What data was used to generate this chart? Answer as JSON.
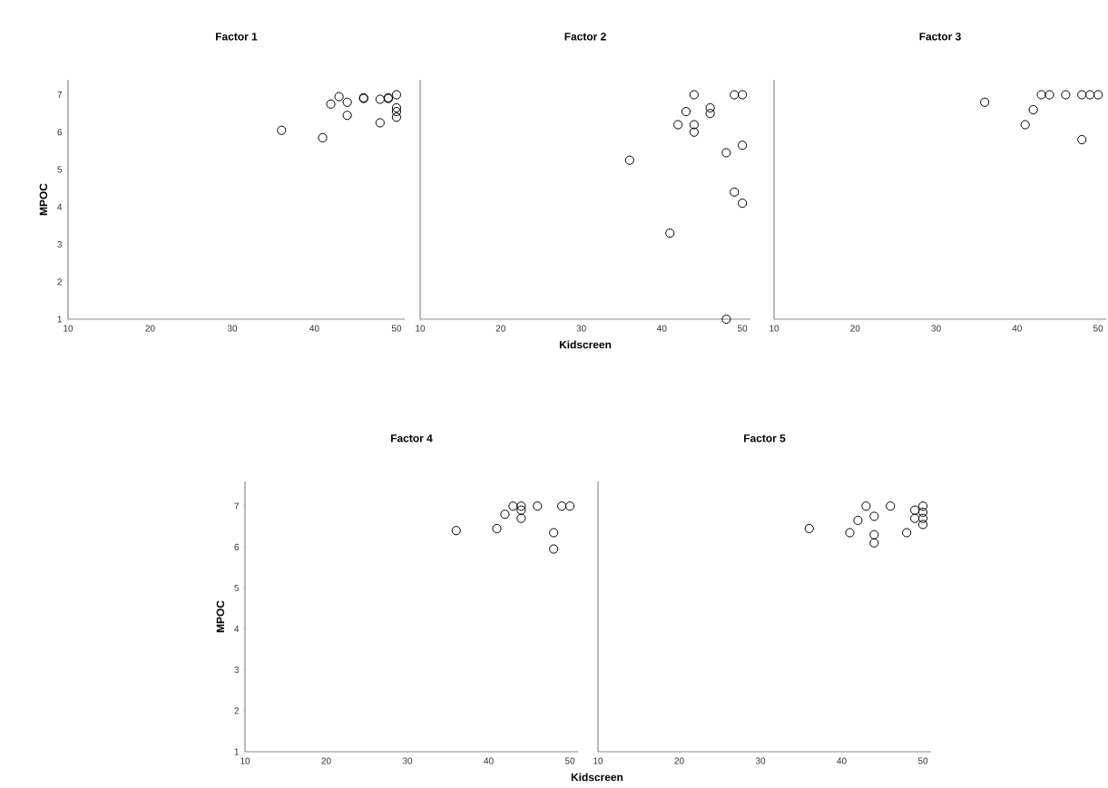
{
  "chart_data": [
    {
      "type": "scatter",
      "title": "Factor 1",
      "ylabel": "MPOC",
      "marker": "circle",
      "color": "#000000",
      "xlim": [
        10,
        51
      ],
      "ylim": [
        1,
        7.4
      ],
      "xticks": [
        10,
        20,
        30,
        40,
        50
      ],
      "yticks": [
        1,
        2,
        3,
        4,
        5,
        6,
        7
      ],
      "x": [
        36,
        41,
        42,
        43,
        44,
        44,
        46,
        46,
        48,
        48,
        49,
        49,
        50,
        50,
        50,
        50
      ],
      "values": [
        6.05,
        5.85,
        6.75,
        6.95,
        6.8,
        6.45,
        6.9,
        6.92,
        6.88,
        6.25,
        6.9,
        6.92,
        7.0,
        6.65,
        6.55,
        6.4
      ]
    },
    {
      "type": "scatter",
      "title": "Factor 2",
      "xlabel": "Kidscreen",
      "marker": "circle",
      "color": "#000000",
      "tick_labels": "x",
      "xlim": [
        10,
        51
      ],
      "ylim": [
        1,
        7.4
      ],
      "xticks": [
        10,
        20,
        30,
        40,
        50
      ],
      "yticks": [
        1,
        2,
        3,
        4,
        5,
        6,
        7
      ],
      "x": [
        36,
        41,
        42,
        43,
        44,
        44,
        44,
        46,
        46,
        48,
        49,
        50,
        50,
        49,
        50,
        48
      ],
      "values": [
        5.25,
        3.3,
        6.2,
        6.55,
        7.0,
        6.2,
        6.0,
        6.65,
        6.5,
        5.45,
        7.0,
        7.0,
        5.65,
        4.4,
        4.1,
        1.0
      ]
    },
    {
      "type": "scatter",
      "title": "Factor 3",
      "marker": "circle",
      "color": "#000000",
      "tick_labels": "x",
      "xlim": [
        10,
        51
      ],
      "ylim": [
        1,
        7.4
      ],
      "xticks": [
        10,
        20,
        30,
        40,
        50
      ],
      "yticks": [
        1,
        2,
        3,
        4,
        5,
        6,
        7
      ],
      "x": [
        36,
        41,
        42,
        43,
        44,
        46,
        48,
        49,
        50,
        48
      ],
      "values": [
        6.8,
        6.2,
        6.6,
        7.0,
        7.0,
        7.0,
        7.0,
        7.0,
        7.0,
        5.8
      ]
    },
    {
      "type": "scatter",
      "title": "Factor 4",
      "xlabel": "Kidscreen",
      "ylabel": "MPOC",
      "marker": "circle",
      "color": "#000000",
      "xlim": [
        10,
        51
      ],
      "ylim": [
        1,
        7.6
      ],
      "xticks": [
        10,
        20,
        30,
        40,
        50
      ],
      "yticks": [
        1,
        2,
        3,
        4,
        5,
        6,
        7
      ],
      "x": [
        36,
        41,
        42,
        43,
        44,
        44,
        44,
        46,
        49,
        50,
        48,
        48
      ],
      "values": [
        6.4,
        6.45,
        6.8,
        7.0,
        7.0,
        6.9,
        6.7,
        7.0,
        7.0,
        7.0,
        6.35,
        5.95
      ]
    },
    {
      "type": "scatter",
      "title": "Factor 5",
      "marker": "circle",
      "color": "#000000",
      "tick_labels": "x",
      "xlim": [
        10,
        51
      ],
      "ylim": [
        1,
        7.6
      ],
      "xticks": [
        10,
        20,
        30,
        40,
        50
      ],
      "yticks": [
        1,
        2,
        3,
        4,
        5,
        6,
        7
      ],
      "x": [
        36,
        41,
        42,
        43,
        44,
        44,
        44,
        46,
        48,
        49,
        49,
        50,
        50,
        50,
        50
      ],
      "values": [
        6.45,
        6.35,
        6.65,
        7.0,
        6.75,
        6.3,
        6.1,
        7.0,
        6.35,
        6.9,
        6.7,
        7.0,
        6.85,
        6.7,
        6.55
      ]
    }
  ]
}
